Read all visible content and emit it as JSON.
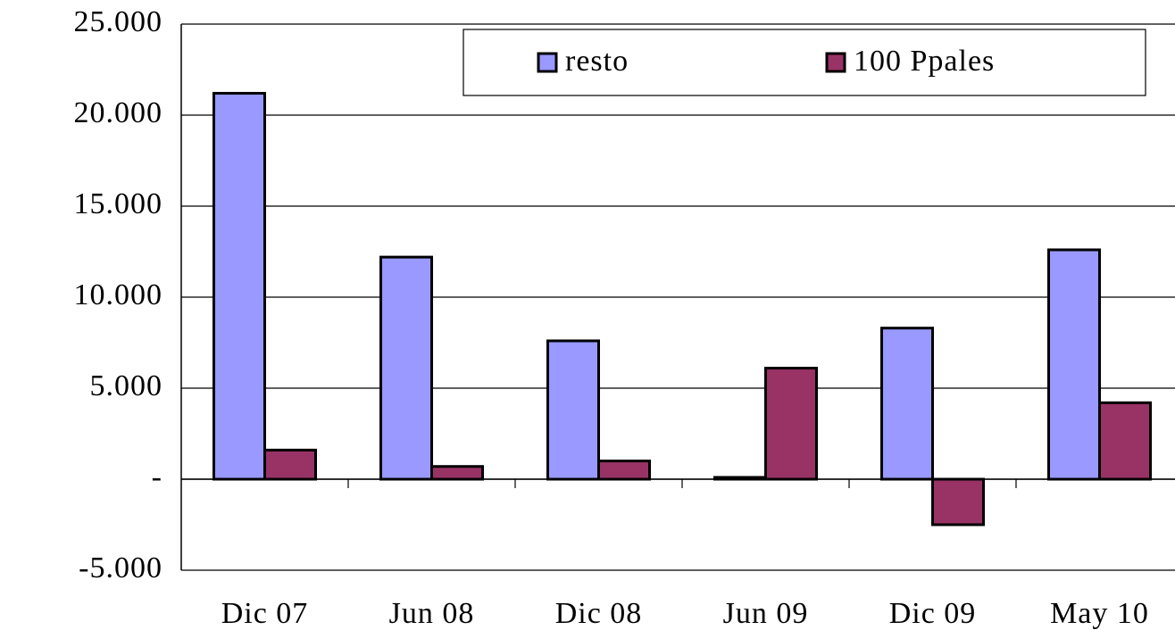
{
  "chart_data": {
    "type": "bar",
    "categories": [
      "Dic 07",
      "Jun 08",
      "Dic 08",
      "Jun 09",
      "Dic 09",
      "May 10"
    ],
    "series": [
      {
        "name": "resto",
        "color": "#9999ff",
        "values": [
          21200,
          12200,
          7600,
          100,
          8300,
          12600
        ]
      },
      {
        "name": "100 Ppales",
        "color": "#993366",
        "values": [
          1600,
          700,
          1000,
          6100,
          -2500,
          4200
        ]
      }
    ],
    "ylim": [
      -5000,
      25000
    ],
    "yticks": [
      {
        "value": -5000,
        "label": "-5.000"
      },
      {
        "value": 0,
        "label": "-"
      },
      {
        "value": 5000,
        "label": "5.000"
      },
      {
        "value": 10000,
        "label": "10.000"
      },
      {
        "value": 15000,
        "label": "15.000"
      },
      {
        "value": 20000,
        "label": "20.000"
      },
      {
        "value": 25000,
        "label": "25.000"
      }
    ],
    "grid": true,
    "legend": "top-right"
  }
}
